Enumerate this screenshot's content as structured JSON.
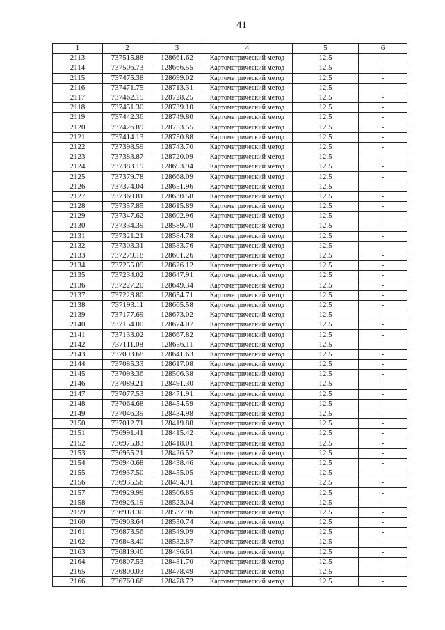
{
  "page_number": "41",
  "table": {
    "headers": [
      "1",
      "2",
      "3",
      "4",
      "5",
      "6"
    ],
    "rows": [
      [
        "2113",
        "737515.88",
        "128661.62",
        "Картометрический метод",
        "12.5",
        "-"
      ],
      [
        "2114",
        "737506.73",
        "128666.55",
        "Картометрический метод",
        "12.5",
        "-"
      ],
      [
        "2115",
        "737475.38",
        "128699.02",
        "Картометрический метод",
        "12.5",
        "-"
      ],
      [
        "2116",
        "737471.75",
        "128713.31",
        "Картометрический метод",
        "12.5",
        "-"
      ],
      [
        "2117",
        "737462.15",
        "128728.25",
        "Картометрический метод",
        "12.5",
        "-"
      ],
      [
        "2118",
        "737451.30",
        "128739.10",
        "Картометрический метод",
        "12.5",
        "-"
      ],
      [
        "2119",
        "737442.36",
        "128749.80",
        "Картометрический метод",
        "12.5",
        "-"
      ],
      [
        "2120",
        "737426.89",
        "128753.55",
        "Картометрический метод",
        "12.5",
        "-"
      ],
      [
        "2121",
        "737414.13",
        "128750.88",
        "Картометрический метод",
        "12.5",
        "-"
      ],
      [
        "2122",
        "737398.59",
        "128743.70",
        "Картометрический метод",
        "12.5",
        "-"
      ],
      [
        "2123",
        "737383.87",
        "128720.09",
        "Картометрический метод",
        "12.5",
        "-"
      ],
      [
        "2124",
        "737383.19",
        "128693.94",
        "Картометрический метод",
        "12.5",
        "-"
      ],
      [
        "2125",
        "737379.78",
        "128668.09",
        "Картометрический метод",
        "12.5",
        "-"
      ],
      [
        "2126",
        "737374.04",
        "128651.96",
        "Картометрический метод",
        "12.5",
        "-"
      ],
      [
        "2127",
        "737360.81",
        "128630.58",
        "Картометрический метод",
        "12.5",
        "-"
      ],
      [
        "2128",
        "737357.85",
        "128615.89",
        "Картометрический метод",
        "12.5",
        "-"
      ],
      [
        "2129",
        "737347.62",
        "128602.96",
        "Картометрический метод",
        "12.5",
        "-"
      ],
      [
        "2130",
        "737334.39",
        "128589.70",
        "Картометрический метод",
        "12.5",
        "-"
      ],
      [
        "2131",
        "737321.21",
        "128584.78",
        "Картометрический метод",
        "12.5",
        "-"
      ],
      [
        "2132",
        "737303.31",
        "128583.76",
        "Картометрический метод",
        "12.5",
        "-"
      ],
      [
        "2133",
        "737279.18",
        "128601.26",
        "Картометрический метод",
        "12.5",
        "-"
      ],
      [
        "2134",
        "737255.09",
        "128626.12",
        "Картометрический метод",
        "12.5",
        "-"
      ],
      [
        "2135",
        "737234.02",
        "128647.91",
        "Картометрический метод",
        "12.5",
        "-"
      ],
      [
        "2136",
        "737227.20",
        "128649.34",
        "Картометрический метод",
        "12.5",
        "-"
      ],
      [
        "2137",
        "737223.80",
        "128654.71",
        "Картометрический метод",
        "12.5",
        "-"
      ],
      [
        "2138",
        "737193.11",
        "128665.58",
        "Картометрический метод",
        "12.5",
        "-"
      ],
      [
        "2139",
        "737177.69",
        "128673.02",
        "Картометрический метод",
        "12.5",
        "-"
      ],
      [
        "2140",
        "737154.00",
        "128674.07",
        "Картометрический метод",
        "12.5",
        "-"
      ],
      [
        "2141",
        "737133.02",
        "128667.82",
        "Картометрический метод",
        "12.5",
        "-"
      ],
      [
        "2142",
        "737111.08",
        "128656.11",
        "Картометрический метод",
        "12.5",
        "-"
      ],
      [
        "2143",
        "737093.68",
        "128641.63",
        "Картометрический метод",
        "12.5",
        "-"
      ],
      [
        "2144",
        "737085.33",
        "128617.08",
        "Картометрический метод",
        "12.5",
        "-"
      ],
      [
        "2145",
        "737093.36",
        "128506.38",
        "Картометрический метод",
        "12.5",
        "-"
      ],
      [
        "2146",
        "737089.21",
        "128491.30",
        "Картометрический метод",
        "12.5",
        "-"
      ],
      [
        "2147",
        "737077.53",
        "128471.91",
        "Картометрический метод",
        "12.5",
        "-"
      ],
      [
        "2148",
        "737064.68",
        "128454.59",
        "Картометрический метод",
        "12.5",
        "-"
      ],
      [
        "2149",
        "737046.39",
        "128434.98",
        "Картометрический метод",
        "12.5",
        "-"
      ],
      [
        "2150",
        "737012.71",
        "128419.88",
        "Картометрический метод",
        "12.5",
        "-"
      ],
      [
        "2151",
        "736991.41",
        "128415.42",
        "Картометрический метод",
        "12.5",
        "-"
      ],
      [
        "2152",
        "736975.83",
        "128418.01",
        "Картометрический метод",
        "12.5",
        "-"
      ],
      [
        "2153",
        "736955.21",
        "128426.52",
        "Картометрический метод",
        "12.5",
        "-"
      ],
      [
        "2154",
        "736940.68",
        "128438.46",
        "Картометрический метод",
        "12.5",
        "-"
      ],
      [
        "2155",
        "736937.50",
        "128455.05",
        "Картометрический метод",
        "12.5",
        "-"
      ],
      [
        "2156",
        "736935.56",
        "128494.91",
        "Картометрический метод",
        "12.5",
        "-"
      ],
      [
        "2157",
        "736929.99",
        "128506.85",
        "Картометрический метод",
        "12.5",
        "-"
      ],
      [
        "2158",
        "736926.19",
        "128523.04",
        "Картометрический метод",
        "12.5",
        "-"
      ],
      [
        "2159",
        "736918.30",
        "128537.96",
        "Картометрический метод",
        "12.5",
        "-"
      ],
      [
        "2160",
        "736903.64",
        "128550.74",
        "Картометрический метод",
        "12.5",
        "-"
      ],
      [
        "2161",
        "736873.56",
        "128549.09",
        "Картометрический метод",
        "12.5",
        "-"
      ],
      [
        "2162",
        "736843.40",
        "128532.87",
        "Картометрический метод",
        "12.5",
        "-"
      ],
      [
        "2163",
        "736819.46",
        "128496.61",
        "Картометрический метод",
        "12.5",
        "-"
      ],
      [
        "2164",
        "736807.53",
        "128481.70",
        "Картометрический метод",
        "12.5",
        "-"
      ],
      [
        "2165",
        "736800.03",
        "128478.49",
        "Картометрический метод",
        "12.5",
        "-"
      ],
      [
        "2166",
        "736760.66",
        "128478.72",
        "Картометрический метод",
        "12.5",
        "-"
      ]
    ]
  }
}
